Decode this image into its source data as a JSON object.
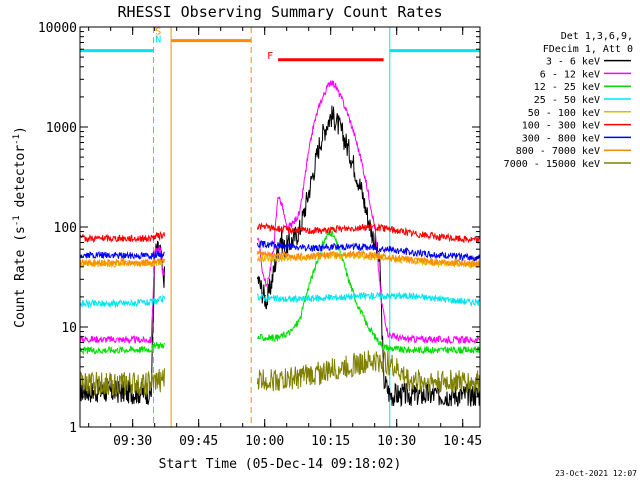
{
  "chart_data": {
    "type": "line",
    "title": "RHESSI Observing Summary Count Rates",
    "xlabel": "Start Time (05-Dec-14 09:18:02)",
    "ylabel_main": "Count Rate (s",
    "ylabel_sup1": "-1",
    "ylabel_mid": " detector",
    "ylabel_sup2": "-1",
    "ylabel_end": ")",
    "y_scale": "log",
    "ylim": [
      1,
      10000
    ],
    "x_unit": "minutes after 09:18:02",
    "xlim": [
      0,
      90.9
    ],
    "x_ticks": [
      {
        "label": "09:30",
        "x": 11.97
      },
      {
        "label": "09:45",
        "x": 26.97
      },
      {
        "label": "10:00",
        "x": 41.97
      },
      {
        "label": "10:15",
        "x": 56.97
      },
      {
        "label": "10:30",
        "x": 71.97
      },
      {
        "label": "10:45",
        "x": 86.97
      }
    ],
    "y_ticks": [
      {
        "label": "1",
        "value": 1
      },
      {
        "label": "10",
        "value": 10
      },
      {
        "label": "100",
        "value": 100
      },
      {
        "label": "1000",
        "value": 1000
      },
      {
        "label": "10000",
        "value": 10000
      }
    ],
    "legend_header": [
      "Det 1,3,6,9,",
      "FDecim 1, Att 0"
    ],
    "legend_position": "right",
    "footer": "23-Oct-2021 12:07",
    "colors": {
      "saa": "#00e5ee",
      "night": "#ff8c00",
      "flare": "#ff0000"
    },
    "intervals": {
      "saa": [
        {
          "x_start": 0,
          "x_end": 16.7
        },
        {
          "x_start": 70.4,
          "x_end": 90.9
        }
      ],
      "night": [
        {
          "x_start": 20.7,
          "x_end": 38.9
        }
      ],
      "flare": [
        {
          "x_start": 45.0,
          "x_end": 69.0
        }
      ]
    },
    "bar_levels": {
      "saa": 5800,
      "night": 7300,
      "flare": 4700
    },
    "flags": [
      {
        "label": "S",
        "x": 17.8,
        "y": 8400,
        "color": "#ff8c00"
      },
      {
        "label": "N",
        "x": 17.8,
        "y": 7000,
        "color": "#00e5ee"
      },
      {
        "label": "F",
        "x": 43.2,
        "y": 4800,
        "color": "#ff0000"
      }
    ],
    "data_gaps": [
      [
        19.2,
        40.3
      ]
    ],
    "series": [
      {
        "name": "3 - 6 keV",
        "color": "#000000",
        "points": [
          [
            0,
            2.3
          ],
          [
            16.2,
            2.2
          ],
          [
            17.0,
            55
          ],
          [
            18.2,
            60
          ],
          [
            18.8,
            32
          ],
          [
            40.5,
            30
          ],
          [
            41.5,
            22
          ],
          [
            42.5,
            18
          ],
          [
            44,
            35
          ],
          [
            45.5,
            82
          ],
          [
            46.5,
            60
          ],
          [
            48.5,
            75
          ],
          [
            50,
            95
          ],
          [
            51.5,
            180
          ],
          [
            53,
            350
          ],
          [
            54.5,
            700
          ],
          [
            56,
            1050
          ],
          [
            57,
            1300
          ],
          [
            58,
            1200
          ],
          [
            59.5,
            880
          ],
          [
            61,
            600
          ],
          [
            62.5,
            380
          ],
          [
            64,
            230
          ],
          [
            65.5,
            120
          ],
          [
            67,
            70
          ],
          [
            68.2,
            40
          ],
          [
            69,
            3
          ],
          [
            70.4,
            2.1
          ],
          [
            90.9,
            2.1
          ]
        ]
      },
      {
        "name": "6 - 12 keV",
        "color": "#ff00ff",
        "points": [
          [
            0,
            7.6
          ],
          [
            16.2,
            7.4
          ],
          [
            17.0,
            55
          ],
          [
            18.2,
            62
          ],
          [
            18.8,
            35
          ],
          [
            40.5,
            80
          ],
          [
            41.5,
            35
          ],
          [
            42.5,
            25
          ],
          [
            44,
            60
          ],
          [
            45,
            210
          ],
          [
            46,
            160
          ],
          [
            47,
            95
          ],
          [
            48.5,
            110
          ],
          [
            50,
            140
          ],
          [
            51.5,
            420
          ],
          [
            53,
            1000
          ],
          [
            54.5,
            1700
          ],
          [
            56,
            2400
          ],
          [
            57,
            2900
          ],
          [
            58,
            2600
          ],
          [
            59.5,
            1900
          ],
          [
            61,
            1300
          ],
          [
            62.5,
            800
          ],
          [
            64,
            450
          ],
          [
            65.5,
            220
          ],
          [
            67,
            100
          ],
          [
            68.5,
            18
          ],
          [
            70,
            8.5
          ],
          [
            73,
            7.6
          ],
          [
            90.9,
            7.4
          ]
        ]
      },
      {
        "name": "12 - 25 keV",
        "color": "#00dd00",
        "points": [
          [
            0,
            5.8
          ],
          [
            16.2,
            6.0
          ],
          [
            17.0,
            6.5
          ],
          [
            18.8,
            6.6
          ],
          [
            40.5,
            7.8
          ],
          [
            45,
            7.8
          ],
          [
            48,
            9
          ],
          [
            50,
            12
          ],
          [
            52,
            26
          ],
          [
            53.5,
            40
          ],
          [
            55,
            65
          ],
          [
            56,
            80
          ],
          [
            57,
            90
          ],
          [
            58,
            75
          ],
          [
            59.5,
            50
          ],
          [
            61,
            30
          ],
          [
            63,
            17
          ],
          [
            65,
            11
          ],
          [
            67,
            8
          ],
          [
            69,
            6.3
          ],
          [
            73,
            5.9
          ],
          [
            90.9,
            5.9
          ]
        ]
      },
      {
        "name": "25 - 50 keV",
        "color": "#00e5ee",
        "points": [
          [
            0,
            17
          ],
          [
            16.2,
            17.5
          ],
          [
            17.0,
            18
          ],
          [
            18.8,
            19
          ],
          [
            40.5,
            20
          ],
          [
            45,
            19
          ],
          [
            50,
            19
          ],
          [
            55,
            19.5
          ],
          [
            60,
            20
          ],
          [
            65,
            20.5
          ],
          [
            70,
            20.5
          ],
          [
            75,
            20.5
          ],
          [
            80,
            19.5
          ],
          [
            85,
            18.5
          ],
          [
            90.9,
            17.5
          ]
        ]
      },
      {
        "name": "50 - 100 keV",
        "color": "#e6b800",
        "points": [
          [
            0,
            43
          ],
          [
            16.2,
            43
          ],
          [
            17.0,
            44
          ],
          [
            18.8,
            45
          ],
          [
            40.5,
            48
          ],
          [
            45,
            48
          ],
          [
            50,
            49
          ],
          [
            55,
            51
          ],
          [
            60,
            52
          ],
          [
            65,
            51
          ],
          [
            70,
            49
          ],
          [
            75,
            46
          ],
          [
            80,
            44
          ],
          [
            85,
            43
          ],
          [
            90.9,
            42
          ]
        ]
      },
      {
        "name": "100 - 300 keV",
        "color": "#ff0000",
        "points": [
          [
            0,
            77
          ],
          [
            16.2,
            77
          ],
          [
            17.0,
            80
          ],
          [
            18.8,
            82
          ],
          [
            40.5,
            102
          ],
          [
            45,
            96
          ],
          [
            50,
            92
          ],
          [
            55,
            92
          ],
          [
            60,
            96
          ],
          [
            65,
            100
          ],
          [
            70,
            96
          ],
          [
            75,
            87
          ],
          [
            80,
            81
          ],
          [
            85,
            77
          ],
          [
            90.9,
            74
          ]
        ]
      },
      {
        "name": "300 - 800 keV",
        "color": "#0000ff",
        "points": [
          [
            0,
            52
          ],
          [
            16.2,
            52
          ],
          [
            17.0,
            53
          ],
          [
            18.8,
            54
          ],
          [
            40.5,
            68
          ],
          [
            45,
            65
          ],
          [
            50,
            62
          ],
          [
            55,
            62
          ],
          [
            60,
            64
          ],
          [
            65,
            63
          ],
          [
            70,
            60
          ],
          [
            75,
            56
          ],
          [
            80,
            53
          ],
          [
            85,
            51
          ],
          [
            90.9,
            49
          ]
        ]
      },
      {
        "name": "800 - 7000 keV",
        "color": "#ff8c00",
        "points": [
          [
            0,
            44
          ],
          [
            16.2,
            44
          ],
          [
            17.0,
            46
          ],
          [
            18.8,
            48
          ],
          [
            40.5,
            54
          ],
          [
            45,
            52
          ],
          [
            50,
            51
          ],
          [
            55,
            52
          ],
          [
            60,
            54
          ],
          [
            65,
            53
          ],
          [
            70,
            50
          ],
          [
            75,
            47
          ],
          [
            80,
            45
          ],
          [
            85,
            44
          ],
          [
            90.9,
            43
          ]
        ]
      },
      {
        "name": "7000 - 15000 keV",
        "color": "#808000",
        "points": [
          [
            0,
            2.7
          ],
          [
            16.2,
            2.7
          ],
          [
            17.0,
            2.8
          ],
          [
            18.8,
            3.0
          ],
          [
            40.5,
            3.0
          ],
          [
            48,
            3.0
          ],
          [
            55,
            3.5
          ],
          [
            62,
            4.2
          ],
          [
            68,
            4.6
          ],
          [
            70.4,
            4.3
          ],
          [
            75,
            2.9
          ],
          [
            90.9,
            2.8
          ]
        ]
      }
    ]
  }
}
